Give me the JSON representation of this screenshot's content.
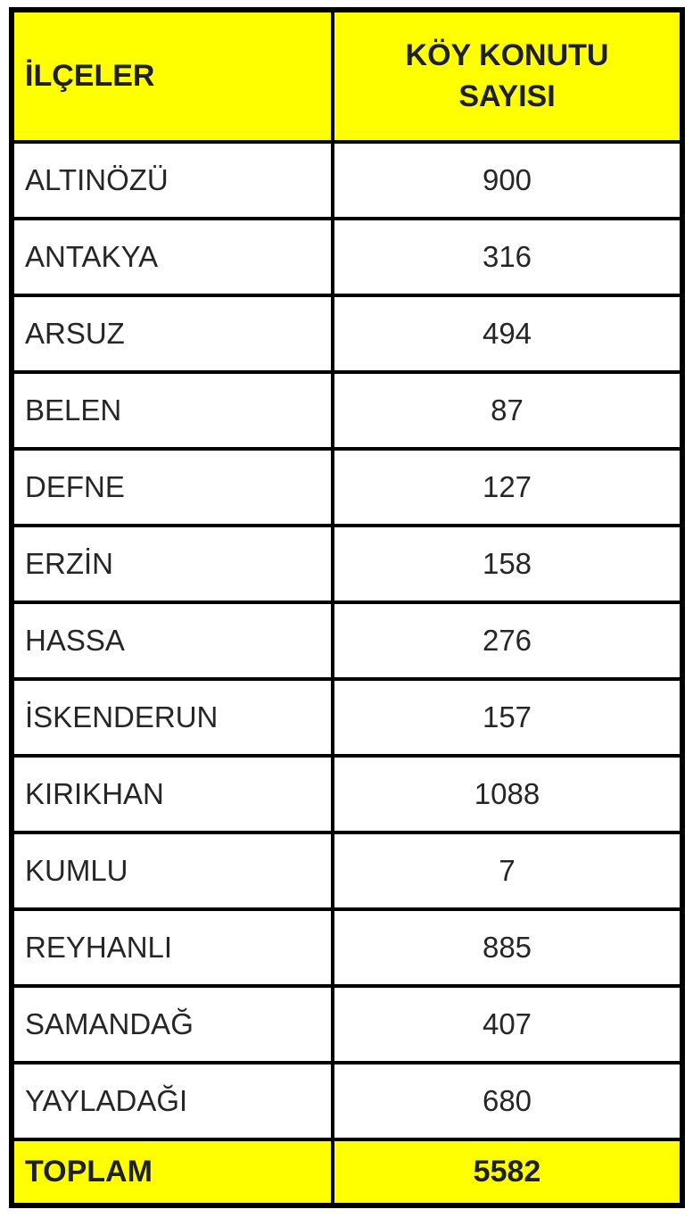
{
  "table": {
    "header": {
      "district_col": "İLÇELER",
      "count_col": "KÖY KONUTU SAYISI"
    },
    "rows": [
      {
        "district": "ALTINÖZÜ",
        "count": "900"
      },
      {
        "district": "ANTAKYA",
        "count": "316"
      },
      {
        "district": "ARSUZ",
        "count": "494"
      },
      {
        "district": "BELEN",
        "count": "87"
      },
      {
        "district": "DEFNE",
        "count": "127"
      },
      {
        "district": "ERZİN",
        "count": "158"
      },
      {
        "district": "HASSA",
        "count": "276"
      },
      {
        "district": "İSKENDERUN",
        "count": "157"
      },
      {
        "district": "KIRIKHAN",
        "count": "1088"
      },
      {
        "district": "KUMLU",
        "count": "7"
      },
      {
        "district": "REYHANLI",
        "count": "885"
      },
      {
        "district": "SAMANDAĞ",
        "count": "407"
      },
      {
        "district": "YAYLADAĞI",
        "count": "680"
      }
    ],
    "footer": {
      "label": "TOPLAM",
      "total": "5582"
    },
    "colors": {
      "highlight_bg": "#ffff00",
      "border": "#000000",
      "text": "#262626"
    }
  },
  "chart_data": {
    "type": "table",
    "title": "KÖY KONUTU SAYISI",
    "columns": [
      "İLÇELER",
      "KÖY KONUTU SAYISI"
    ],
    "categories": [
      "ALTINÖZÜ",
      "ANTAKYA",
      "ARSUZ",
      "BELEN",
      "DEFNE",
      "ERZİN",
      "HASSA",
      "İSKENDERUN",
      "KIRIKHAN",
      "KUMLU",
      "REYHANLI",
      "SAMANDAĞ",
      "YAYLADAĞI"
    ],
    "values": [
      900,
      316,
      494,
      87,
      127,
      158,
      276,
      157,
      1088,
      7,
      885,
      407,
      680
    ],
    "total_label": "TOPLAM",
    "total": 5582
  }
}
